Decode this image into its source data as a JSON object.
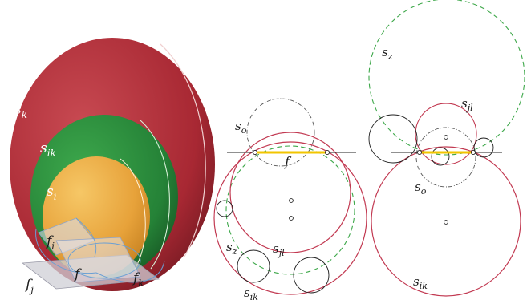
{
  "colors": {
    "red": "#b3303a",
    "red_dark": "#7d1d24",
    "green": "#2a8a3a",
    "green_dark": "#1c5e26",
    "orange": "#e6a53c",
    "orange_dark": "#c47d1e",
    "crimson_line": "#c23a52",
    "green_dash": "#3ea84a",
    "gray_dash": "#555555",
    "yellow_segment": "#f2c500",
    "blue_outline": "#6a9fd4"
  },
  "labels": {
    "left": {
      "s_k": "s",
      "s_k_sub": "k",
      "s_ik": "s",
      "s_ik_sub": "ik",
      "s_i": "s",
      "s_i_sub": "i",
      "f_i": "f",
      "f_i_sub": "i",
      "f": "f",
      "f_j": "f",
      "f_j_sub": "j",
      "f_k": "f",
      "f_k_sub": "k"
    },
    "middle": {
      "s_o": "s",
      "s_o_sub": "o",
      "f": "f",
      "s_jl": "s",
      "s_jl_sub": "jl",
      "s_z": "s",
      "s_z_sub": "z",
      "s_ik": "s",
      "s_ik_sub": "ik"
    },
    "right": {
      "s_z": "s",
      "s_z_sub": "z",
      "s_jl": "s",
      "s_jl_sub": "jl",
      "s_o": "s",
      "s_o_sub": "o",
      "s_ik": "s",
      "s_ik_sub": "ik"
    }
  }
}
